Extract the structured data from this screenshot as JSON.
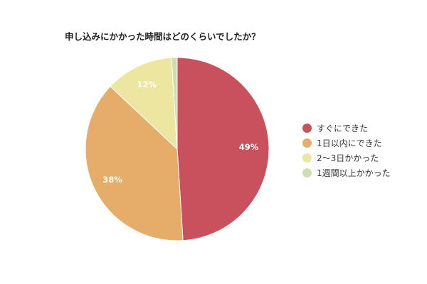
{
  "chart_data": {
    "type": "pie",
    "title": "申し込みにかかった時間はどのくらいでしたか？",
    "slices": [
      {
        "label": "すぐにできた",
        "value": 49,
        "display": "49%",
        "color": "#c9505d"
      },
      {
        "label": "1日以内にできた",
        "value": 38,
        "display": "38%",
        "color": "#e6ac69"
      },
      {
        "label": "2〜3日かかった",
        "value": 12,
        "display": "12%",
        "color": "#ede6a0"
      },
      {
        "label": "1週間以上かかった",
        "value": 1,
        "display": "",
        "color": "#cddfb0"
      }
    ],
    "legend_position": "right"
  }
}
